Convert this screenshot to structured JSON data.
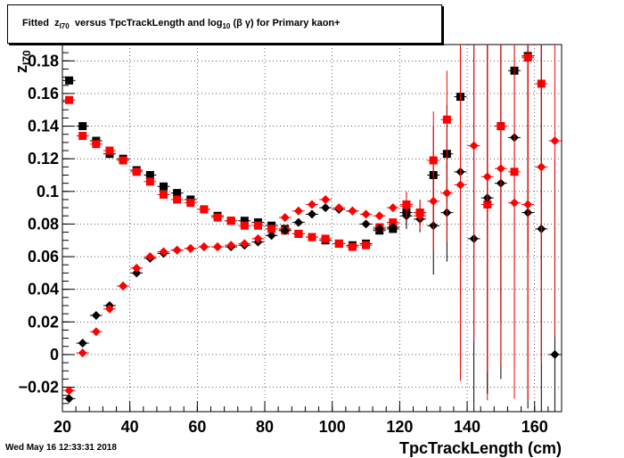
{
  "title": {
    "prefix": "Fitted",
    "z_main": "z",
    "z_sub": "I70",
    "mid": "versus TpcTrackLength and log",
    "log_sub": "10",
    "suffix": "(β γ) for Primary kaon+"
  },
  "footer": {
    "date": "Wed May 16 12:33:31 2018"
  },
  "chart_data": {
    "type": "scatter",
    "xlabel": "TpcTrackLength (cm)",
    "ylabel": "zI70",
    "xlim": [
      20,
      168
    ],
    "ylim": [
      -0.035,
      0.19
    ],
    "xticks": [
      20,
      40,
      60,
      80,
      100,
      120,
      140,
      160
    ],
    "xtick_labels": [
      "20",
      "40",
      "60",
      "80",
      "100",
      "120",
      "140",
      "160"
    ],
    "yticks": [
      -0.02,
      0,
      0.02,
      0.04,
      0.06,
      0.08,
      0.1,
      0.12,
      0.14,
      0.16,
      0.18
    ],
    "ytick_labels": [
      "−0.02",
      "0",
      "0.02",
      "0.04",
      "0.06",
      "0.08",
      "0.1",
      "0.12",
      "0.14",
      "0.16",
      "0.18"
    ],
    "grid": true,
    "colors": {
      "black": "#000000",
      "red": "#ff0000"
    },
    "series": [
      {
        "marker": "square",
        "color": "#000000",
        "x": [
          22,
          26,
          30,
          34,
          38,
          42,
          46,
          50,
          54,
          58,
          62,
          66,
          70,
          74,
          78,
          82,
          86,
          90,
          94,
          98,
          102,
          106,
          110,
          114,
          118,
          122,
          126,
          130,
          134,
          138,
          150,
          154,
          158
        ],
        "y": [
          0.168,
          0.14,
          0.131,
          0.123,
          0.12,
          0.113,
          0.11,
          0.103,
          0.099,
          0.095,
          0.089,
          0.085,
          0.082,
          0.082,
          0.081,
          0.079,
          0.077,
          0.074,
          0.072,
          0.07,
          0.068,
          0.067,
          0.068,
          0.076,
          0.077,
          0.087,
          0.087,
          0.11,
          0.123,
          0.158,
          0.14,
          0.174,
          0.183
        ]
      },
      {
        "marker": "square",
        "color": "#ff0000",
        "x": [
          22,
          26,
          30,
          34,
          38,
          42,
          46,
          50,
          54,
          58,
          62,
          66,
          70,
          74,
          78,
          82,
          86,
          90,
          94,
          98,
          102,
          106,
          110,
          114,
          118,
          122,
          126,
          130,
          134,
          146,
          150,
          154,
          158,
          162
        ],
        "y": [
          0.156,
          0.134,
          0.129,
          0.125,
          0.119,
          0.112,
          0.106,
          0.098,
          0.095,
          0.093,
          0.089,
          0.084,
          0.082,
          0.079,
          0.079,
          0.077,
          0.076,
          0.074,
          0.072,
          0.071,
          0.068,
          0.066,
          0.067,
          0.078,
          0.081,
          0.092,
          0.087,
          0.119,
          0.144,
          0.092,
          0.14,
          0.112,
          0.182,
          0.166
        ]
      },
      {
        "marker": "diamond",
        "color": "#000000",
        "x": [
          22,
          26,
          30,
          34,
          38,
          42,
          46,
          50,
          54,
          58,
          62,
          66,
          70,
          74,
          78,
          82,
          86,
          90,
          94,
          98,
          102,
          106,
          110,
          114,
          118,
          122,
          126,
          130,
          134,
          138,
          142,
          146,
          150,
          154,
          158,
          162,
          166
        ],
        "y": [
          -0.027,
          0.007,
          0.024,
          0.03,
          0.042,
          0.05,
          0.059,
          0.062,
          0.064,
          0.065,
          0.066,
          0.066,
          0.066,
          0.067,
          0.069,
          0.073,
          0.076,
          0.081,
          0.086,
          0.09,
          0.089,
          0.088,
          0.08,
          0.077,
          0.078,
          0.085,
          0.083,
          0.079,
          0.087,
          0.112,
          0.071,
          0.096,
          0.105,
          0.133,
          0.087,
          0.077,
          0.0
        ]
      },
      {
        "marker": "diamond",
        "color": "#ff0000",
        "x": [
          22,
          26,
          30,
          34,
          38,
          42,
          46,
          50,
          54,
          58,
          62,
          66,
          70,
          74,
          78,
          82,
          86,
          90,
          94,
          98,
          102,
          106,
          110,
          114,
          118,
          122,
          126,
          130,
          134,
          138,
          142,
          146,
          150,
          154,
          158,
          162,
          166
        ],
        "y": [
          -0.022,
          0.001,
          0.014,
          0.028,
          0.042,
          0.053,
          0.06,
          0.063,
          0.064,
          0.065,
          0.066,
          0.066,
          0.067,
          0.068,
          0.071,
          0.077,
          0.084,
          0.088,
          0.092,
          0.095,
          0.09,
          0.088,
          0.086,
          0.085,
          0.09,
          0.091,
          0.085,
          0.094,
          0.099,
          0.104,
          0.128,
          0.109,
          0.114,
          0.093,
          0.092,
          0.115,
          0.131
        ]
      }
    ]
  }
}
